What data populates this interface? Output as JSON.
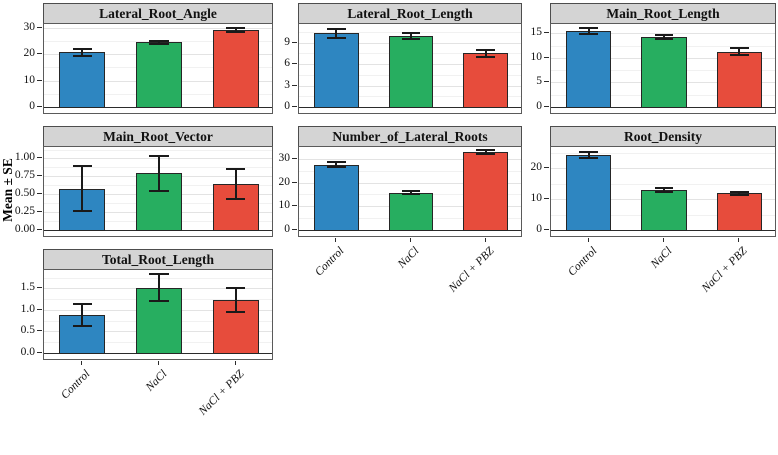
{
  "chart_data": {
    "type": "bar",
    "layout": "facet_grid_3_columns",
    "ylabel": "Mean ± SE",
    "error_bars": "standard error, capped, black",
    "grid": "horizontal major and minor gridlines on white panels",
    "legend": "none (colors map to x categories)",
    "categories": [
      "Control",
      "NaCl",
      "NaCl + PBZ"
    ],
    "colors": {
      "bars": [
        "#2E86C1",
        "#27AE60",
        "#E74C3C"
      ],
      "bar_border": "#262626",
      "strip_background": "#D4D4D4",
      "strip_border": "#4d4d4d",
      "panel_border": "#5a5a5a",
      "gridline_major": "#e3e3e3",
      "gridline_minor": "#f1f1f1",
      "axis_text": "#111111"
    },
    "panels": [
      {
        "title": "Lateral_Root_Angle",
        "row": 0,
        "col": 0,
        "ylim": [
          0,
          31.5
        ],
        "ytick_values": [
          0,
          10,
          20,
          30
        ],
        "ytick_labels": [
          "0",
          "10",
          "20",
          "30"
        ],
        "values": [
          20.7,
          24.5,
          29.2
        ],
        "errors": [
          1.3,
          0.6,
          0.6
        ],
        "show_x_labels": false
      },
      {
        "title": "Lateral_Root_Length",
        "row": 0,
        "col": 1,
        "ylim": [
          0,
          11.6
        ],
        "ytick_values": [
          0,
          3,
          6,
          9
        ],
        "ytick_labels": [
          "0",
          "3",
          "6",
          "9"
        ],
        "values": [
          10.3,
          9.9,
          7.5
        ],
        "errors": [
          0.6,
          0.45,
          0.45
        ],
        "show_x_labels": false
      },
      {
        "title": "Main_Root_Length",
        "row": 0,
        "col": 2,
        "ylim": [
          0,
          16.9
        ],
        "ytick_values": [
          0,
          5,
          10,
          15
        ],
        "ytick_labels": [
          "0",
          "5",
          "10",
          "15"
        ],
        "values": [
          15.4,
          14.3,
          11.3
        ],
        "errors": [
          0.6,
          0.4,
          0.7
        ],
        "show_x_labels": false
      },
      {
        "title": "Main_Root_Vector",
        "row": 1,
        "col": 0,
        "ylim": [
          0,
          1.16
        ],
        "ytick_values": [
          0,
          0.25,
          0.5,
          0.75,
          1
        ],
        "ytick_labels": [
          "0.00",
          "0.25",
          "0.50",
          "0.75",
          "1.00"
        ],
        "values": [
          0.58,
          0.79,
          0.64
        ],
        "errors": [
          0.31,
          0.25,
          0.21
        ],
        "show_x_labels": false
      },
      {
        "title": "Number_of_Lateral_Roots",
        "row": 1,
        "col": 1,
        "ylim": [
          0,
          35
        ],
        "ytick_values": [
          0,
          10,
          20,
          30
        ],
        "ytick_labels": [
          "0",
          "10",
          "20",
          "30"
        ],
        "values": [
          27.5,
          15.8,
          32.9
        ],
        "errors": [
          1.1,
          0.45,
          0.75
        ],
        "show_x_labels": true
      },
      {
        "title": "Root_Density",
        "row": 1,
        "col": 2,
        "ylim": [
          0,
          26.8
        ],
        "ytick_values": [
          0,
          10,
          20
        ],
        "ytick_labels": [
          "0",
          "10",
          "20"
        ],
        "values": [
          24.2,
          13.0,
          11.9
        ],
        "errors": [
          1.1,
          0.6,
          0.5
        ],
        "show_x_labels": true
      },
      {
        "title": "Total_Root_Length",
        "row": 2,
        "col": 0,
        "ylim": [
          0,
          1.93
        ],
        "ytick_values": [
          0,
          0.5,
          1,
          1.5
        ],
        "ytick_labels": [
          "0.0",
          "0.5",
          "1.0",
          "1.5"
        ],
        "values": [
          0.89,
          1.52,
          1.23
        ],
        "errors": [
          0.26,
          0.31,
          0.28
        ],
        "show_x_labels": true
      }
    ]
  }
}
